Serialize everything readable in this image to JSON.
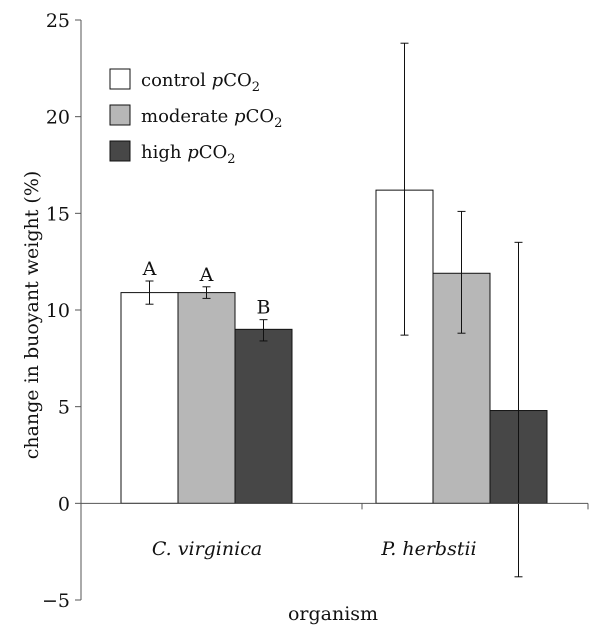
{
  "chart_data": {
    "type": "bar",
    "title": "",
    "xlabel": "organism",
    "ylabel": "change in buoyant weight (%)",
    "ylim": [
      -5,
      25
    ],
    "yticks": [
      -5,
      0,
      5,
      10,
      15,
      20,
      25
    ],
    "grid": false,
    "legend_position": "top-left",
    "categories": [
      "C. virginica",
      "P. herbstii"
    ],
    "series": [
      {
        "name_text": "control ",
        "name_italic": "p",
        "name_co": "CO",
        "name_sub": "2",
        "color": "#ffffff",
        "values": [
          10.9,
          16.2
        ],
        "error_low": [
          10.3,
          8.7
        ],
        "error_high": [
          11.5,
          23.8
        ],
        "sig": [
          "A",
          ""
        ]
      },
      {
        "name_text": "moderate ",
        "name_italic": "p",
        "name_co": "CO",
        "name_sub": "2",
        "color": "#b7b7b7",
        "values": [
          10.9,
          11.9
        ],
        "error_low": [
          10.6,
          8.8
        ],
        "error_high": [
          11.2,
          15.1
        ],
        "sig": [
          "A",
          ""
        ]
      },
      {
        "name_text": "high ",
        "name_italic": "p",
        "name_co": "CO",
        "name_sub": "2",
        "color": "#474747",
        "values": [
          9.0,
          4.8
        ],
        "error_low": [
          8.4,
          -3.8
        ],
        "error_high": [
          9.5,
          13.5
        ],
        "sig": [
          "B",
          ""
        ]
      }
    ]
  }
}
